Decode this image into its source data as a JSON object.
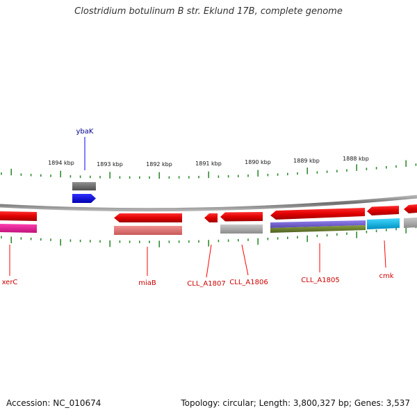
{
  "title": "Clostridium botulinum B str. Eklund 17B, complete genome",
  "footer": {
    "accession": "Accession: NC_010674",
    "stats": "Topology: circular; Length: 3,800,327 bp; Genes: 3,537"
  },
  "ruler": {
    "labels": [
      "1894 kbp",
      "1893 kbp",
      "1892 kbp",
      "1891 kbp",
      "1890 kbp",
      "1889 kbp",
      "1888 kbp"
    ]
  },
  "genes": {
    "ybaK": "ybaK",
    "xerC": "xerC",
    "miaB": "miaB",
    "cll1807": "CLL_A1807",
    "cll1806": "CLL_A1806",
    "cll1805": "CLL_A1805",
    "cmk": "cmk"
  },
  "colors": {
    "forward_gene": "#0000ff",
    "reverse_gene": "#ff0000",
    "forward_label": "#00008b",
    "reverse_label": "#cc0000",
    "backbone": "#808080",
    "ticks": "#2e8b2e"
  }
}
